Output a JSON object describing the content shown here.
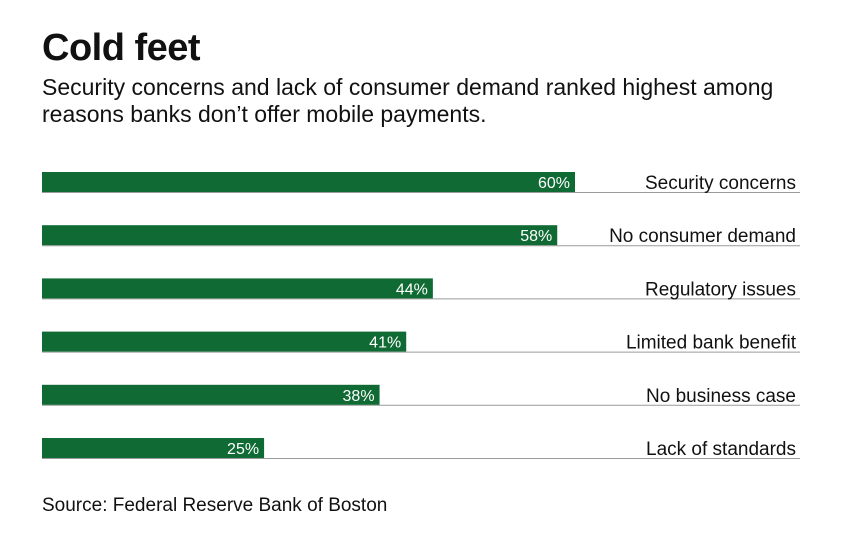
{
  "title": "Cold feet",
  "subtitle": "Security concerns and lack of consumer demand ranked highest among reasons banks don’t offer mobile payments.",
  "source": "Source: Federal Reserve Bank of Boston",
  "colors": {
    "bar": "#0f6a33",
    "rule": "#9a9a9a",
    "bar_text": "#ffffff"
  },
  "chart_data": {
    "type": "bar",
    "orientation": "horizontal",
    "categories": [
      "Security concerns",
      "No consumer demand",
      "Regulatory issues",
      "Limited bank benefit",
      "No business case",
      "Lack of standards"
    ],
    "values": [
      60,
      58,
      44,
      41,
      38,
      25
    ],
    "value_labels": [
      "60%",
      "58%",
      "44%",
      "41%",
      "38%",
      "25%"
    ],
    "unit": "%",
    "xlim": [
      0,
      60
    ],
    "grid": false,
    "legend": "none"
  }
}
